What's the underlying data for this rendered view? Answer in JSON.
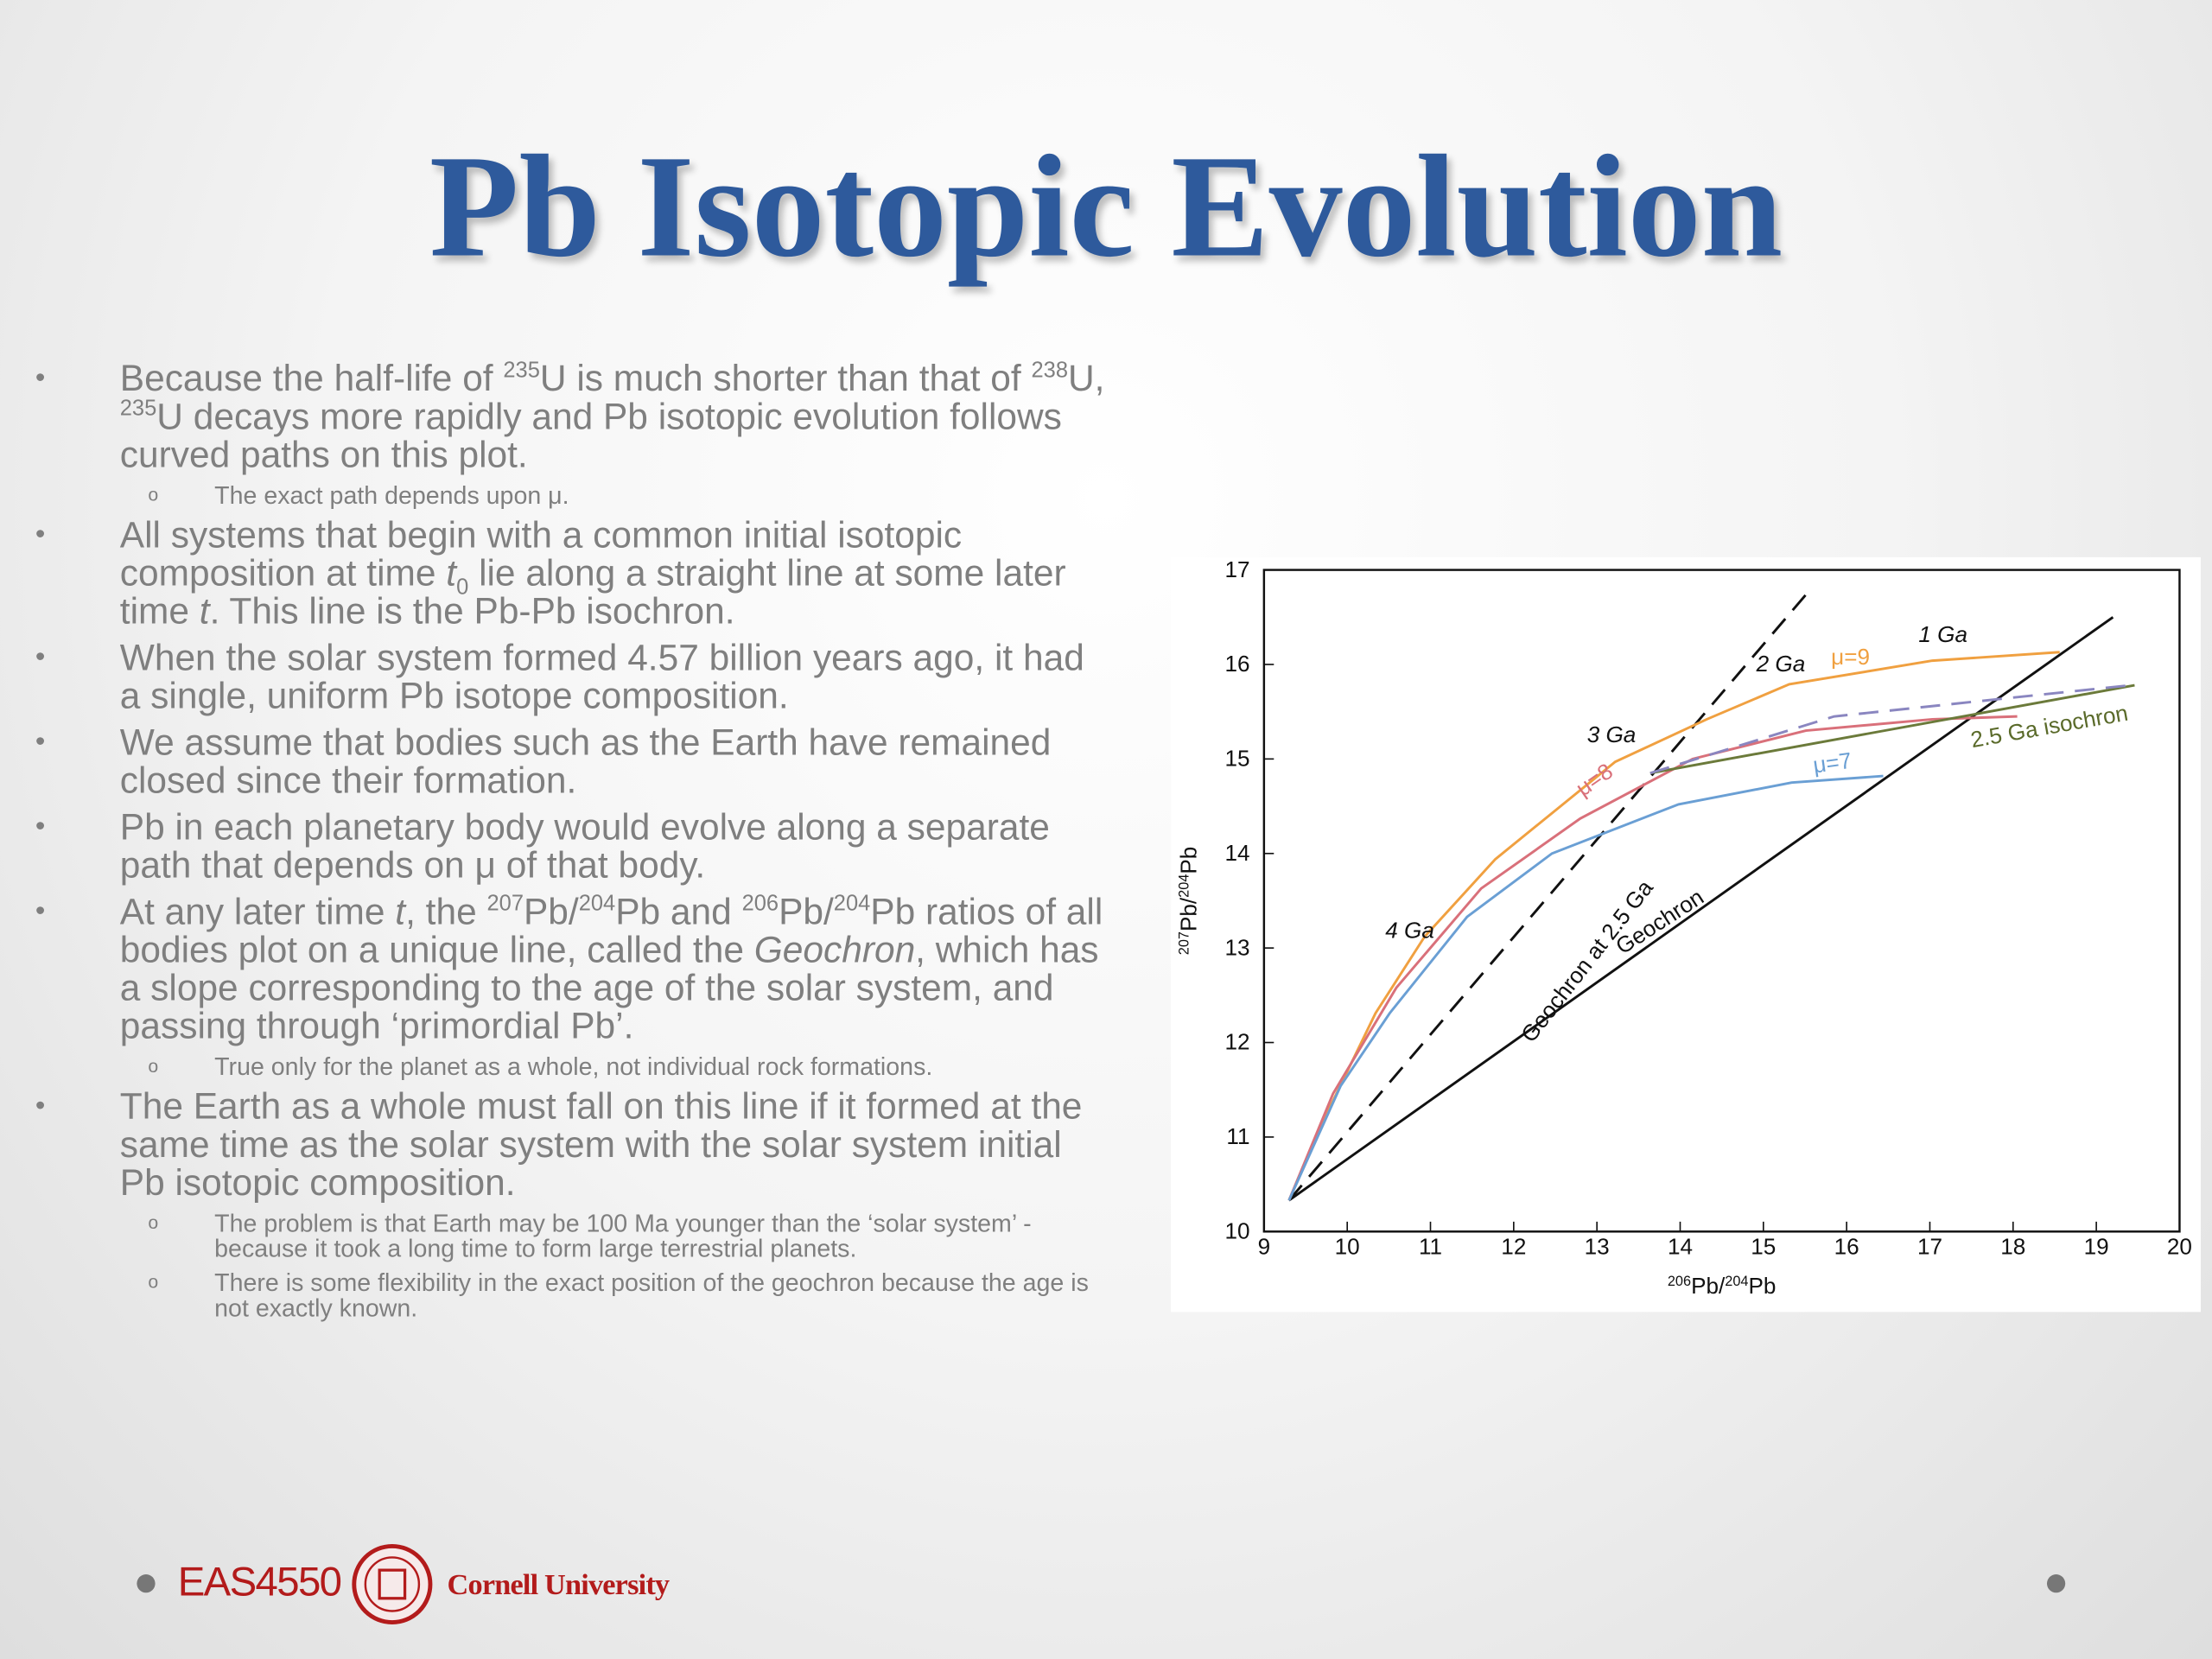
{
  "title": "Pb Isotopic Evolution",
  "bullets": [
    {
      "runs": [
        {
          "text": "Because the half-life of "
        },
        {
          "text": "235",
          "style": "sup"
        },
        {
          "text": "U is much shorter than that of "
        },
        {
          "text": "238",
          "style": "sup"
        },
        {
          "text": "U, "
        },
        {
          "text": "235",
          "style": "sup"
        },
        {
          "text": "U decays more rapidly and Pb isotopic evolution follows curved paths on this plot."
        }
      ],
      "subitems": [
        "The exact path depends upon μ."
      ]
    },
    {
      "runs": [
        {
          "text": "All systems that begin with a common initial isotopic composition at time "
        },
        {
          "text": "t",
          "style": "italic"
        },
        {
          "text": "0",
          "style": "sub"
        },
        {
          "text": " lie along a straight line at some later time "
        },
        {
          "text": "t",
          "style": "italic"
        },
        {
          "text": ". This line is the Pb-Pb isochron."
        }
      ],
      "subitems": []
    },
    {
      "runs": [
        {
          "text": "When the solar system formed 4.57 billion years ago, it had a single, uniform Pb isotope composition."
        }
      ],
      "subitems": []
    },
    {
      "runs": [
        {
          "text": "We assume that bodies such as the Earth have remained closed since their formation."
        }
      ],
      "subitems": []
    },
    {
      "runs": [
        {
          "text": "Pb in each planetary body would evolve along a separate path that depends on μ of that body."
        }
      ],
      "subitems": []
    },
    {
      "runs": [
        {
          "text": "At any later time "
        },
        {
          "text": "t",
          "style": "italic"
        },
        {
          "text": ", the "
        },
        {
          "text": "207",
          "style": "sup"
        },
        {
          "text": "Pb/"
        },
        {
          "text": "204",
          "style": "sup"
        },
        {
          "text": "Pb and "
        },
        {
          "text": "206",
          "style": "sup"
        },
        {
          "text": "Pb/"
        },
        {
          "text": "204",
          "style": "sup"
        },
        {
          "text": "Pb ratios of all bodies plot on a unique line, called the "
        },
        {
          "text": "Geochron",
          "style": "italic"
        },
        {
          "text": ", which has a slope corresponding to the age of the solar system, and passing through ‘primordial Pb’."
        }
      ],
      "subitems": [
        "True only for the planet as a whole, not individual rock formations."
      ]
    },
    {
      "runs": [
        {
          "text": "The Earth as a whole must fall on this line if it formed at the same time as the solar system with the solar system initial Pb isotopic composition."
        }
      ],
      "subitems": [
        "The problem is that Earth may be 100 Ma younger than the ‘solar system’ - because it took a long time to form large terrestrial planets.",
        "There is some flexibility in the exact position of the geochron because the age is not exactly known."
      ]
    }
  ],
  "footer": {
    "course": "EAS4550",
    "university": "Cornell University"
  },
  "figure": {
    "type": "line",
    "xlabel": [
      {
        "text": "206",
        "style": "sup"
      },
      {
        "text": "Pb/"
      },
      {
        "text": "204",
        "style": "sup"
      },
      {
        "text": "Pb"
      }
    ],
    "ylabel": [
      {
        "text": "207",
        "style": "sup"
      },
      {
        "text": "Pb/"
      },
      {
        "text": "204",
        "style": "sup"
      },
      {
        "text": "Pb"
      }
    ],
    "xlim": [
      9,
      20
    ],
    "xticks": [
      9,
      10,
      11,
      12,
      13,
      14,
      15,
      16,
      17,
      18,
      19,
      20
    ],
    "ylim": [
      10,
      17
    ],
    "yticks": [
      10,
      11,
      12,
      13,
      14,
      15,
      16,
      17
    ],
    "series": [
      {
        "color": "#111111",
        "dash": false,
        "x": [
          9.3,
          19.2
        ],
        "y": [
          10.33,
          16.5
        ]
      },
      {
        "color": "#111111",
        "dash": true,
        "x": [
          9.3,
          15.59
        ],
        "y": [
          10.33,
          16.82
        ]
      },
      {
        "color": "#f0a040",
        "dash": false,
        "x": [
          9.3,
          9.75,
          10.34,
          10.93,
          11.78,
          13.22,
          14.32,
          15.31,
          17.03,
          18.56
        ],
        "y": [
          10.33,
          11.24,
          12.31,
          13.12,
          13.94,
          14.97,
          15.42,
          15.79,
          16.04,
          16.13
        ]
      },
      {
        "color": "#d9707a",
        "dash": false,
        "x": [
          9.3,
          9.83,
          10.59,
          11.61,
          12.8,
          14.15,
          15.51,
          17.03,
          18.05
        ],
        "y": [
          10.33,
          11.46,
          12.58,
          13.63,
          14.37,
          15.0,
          15.3,
          15.42,
          15.45
        ]
      },
      {
        "color": "#6a9fd4",
        "dash": false,
        "x": [
          9.3,
          9.92,
          10.51,
          11.44,
          12.46,
          13.98,
          15.34,
          16.44
        ],
        "y": [
          10.33,
          11.54,
          12.31,
          13.33,
          14.0,
          14.52,
          14.75,
          14.82
        ]
      },
      {
        "color": "#6b7a3a",
        "dash": false,
        "x": [
          13.64,
          19.46
        ],
        "y": [
          14.85,
          15.78
        ]
      },
      {
        "color": "#8a86c0",
        "dash": true,
        "x": [
          13.64,
          15.85,
          19.41
        ],
        "y": [
          14.85,
          15.45,
          15.78
        ]
      }
    ],
    "annotations": [
      {
        "text": "1 Ga",
        "color": "#111111"
      },
      {
        "text": "2 Ga",
        "color": "#111111"
      },
      {
        "text": "3 Ga",
        "color": "#111111"
      },
      {
        "text": "4 Ga",
        "color": "#111111"
      },
      {
        "text": "μ=9",
        "color": "#f0a040"
      },
      {
        "text": "μ=8",
        "color": "#d9707a"
      },
      {
        "text": "μ=7",
        "color": "#6a9fd4"
      },
      {
        "text": "2.5 Ga isochron",
        "color": "#5a6a2a"
      },
      {
        "text": "Geochron",
        "color": "#111111"
      },
      {
        "text": "Geochron at 2.5 Ga",
        "color": "#111111"
      }
    ]
  }
}
